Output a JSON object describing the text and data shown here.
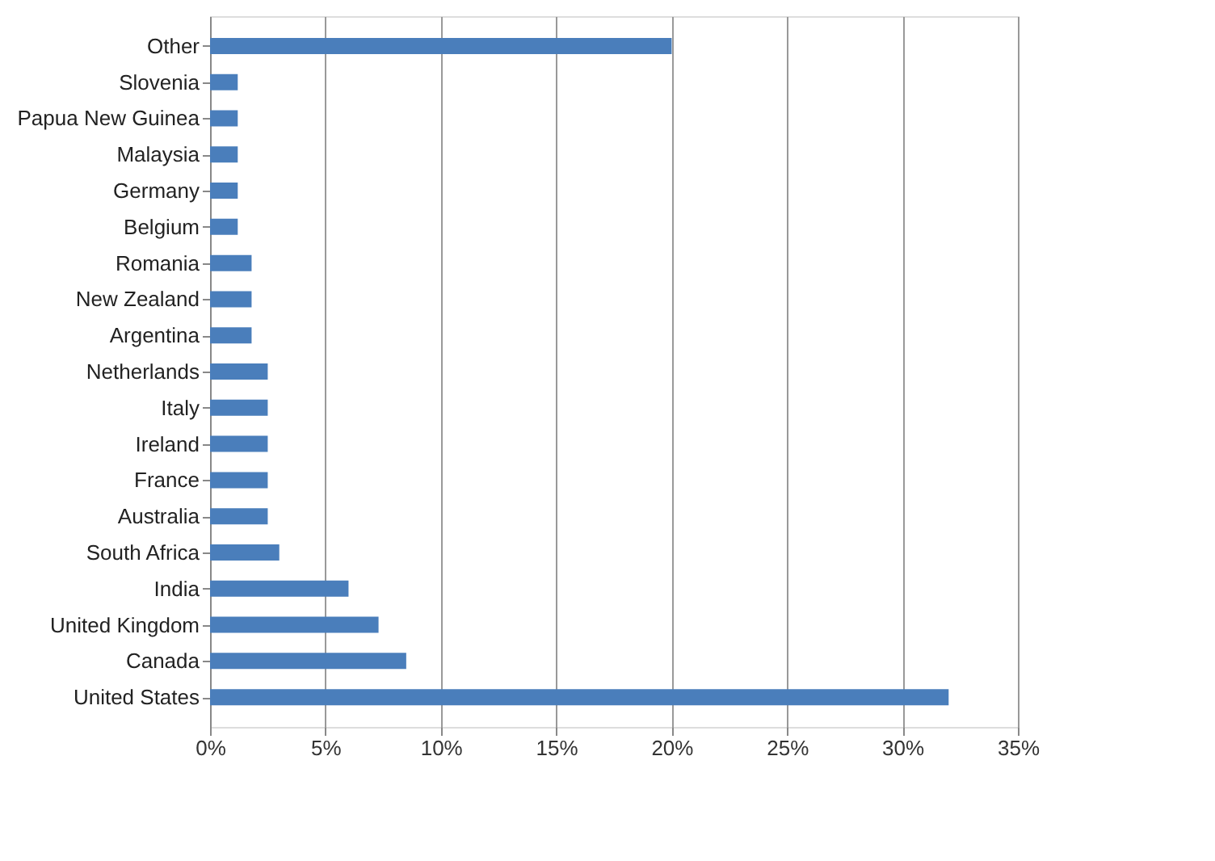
{
  "chart_data": {
    "type": "bar",
    "orientation": "horizontal",
    "categories": [
      "Other",
      "Slovenia",
      "Papua New Guinea",
      "Malaysia",
      "Germany",
      "Belgium",
      "Romania",
      "New Zealand",
      "Argentina",
      "Netherlands",
      "Italy",
      "Ireland",
      "France",
      "Australia",
      "South Africa",
      "India",
      "United Kingdom",
      "Canada",
      "United States"
    ],
    "values": [
      20,
      1.2,
      1.2,
      1.2,
      1.2,
      1.2,
      1.8,
      1.8,
      1.8,
      2.5,
      2.5,
      2.5,
      2.5,
      2.5,
      3,
      6,
      7.3,
      8.5,
      32
    ],
    "color": "#4a7ebb",
    "xlim": [
      0,
      35
    ],
    "xticks": [
      {
        "value": 0,
        "label": "0%"
      },
      {
        "value": 5,
        "label": "5%"
      },
      {
        "value": 10,
        "label": "10%"
      },
      {
        "value": 15,
        "label": "15%"
      },
      {
        "value": 20,
        "label": "20%"
      },
      {
        "value": 25,
        "label": "25%"
      },
      {
        "value": 30,
        "label": "30%"
      },
      {
        "value": 35,
        "label": "35%"
      }
    ],
    "grid": "x"
  }
}
